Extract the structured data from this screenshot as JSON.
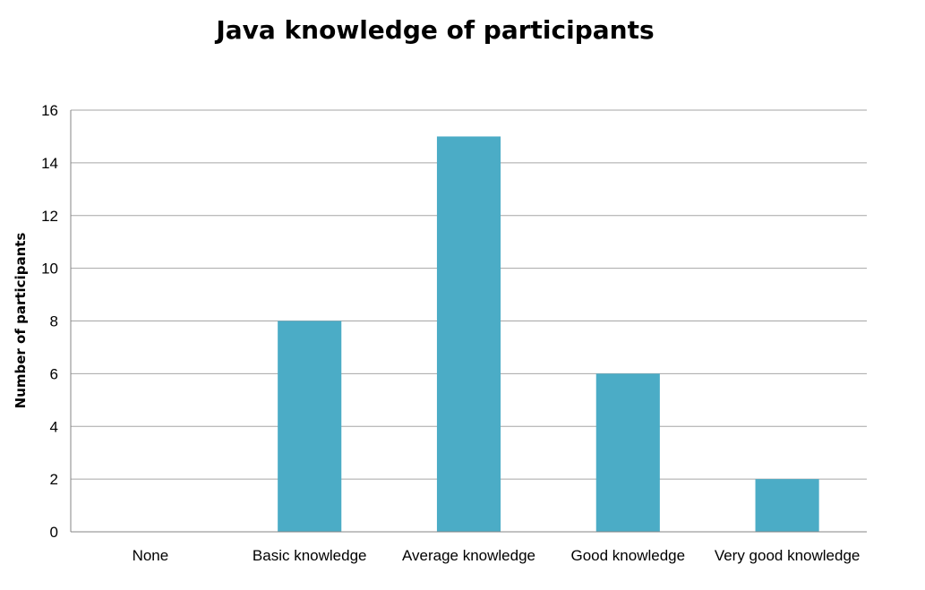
{
  "chart_data": {
    "type": "bar",
    "title": "Java knowledge of participants",
    "xlabel": "",
    "ylabel": "Number of participants",
    "categories": [
      "None",
      "Basic knowledge",
      "Average knowledge",
      "Good knowledge",
      "Very good knowledge"
    ],
    "values": [
      0,
      8,
      15,
      6,
      2
    ],
    "ylim": [
      0,
      16
    ],
    "yticks": [
      "0",
      "2",
      "4",
      "6",
      "8",
      "10",
      "12",
      "14",
      "16"
    ],
    "grid": true,
    "legend": "none",
    "colors": {
      "bar": "#4BACC6",
      "grid": "#A6A6A6",
      "axis": "#868686"
    }
  }
}
